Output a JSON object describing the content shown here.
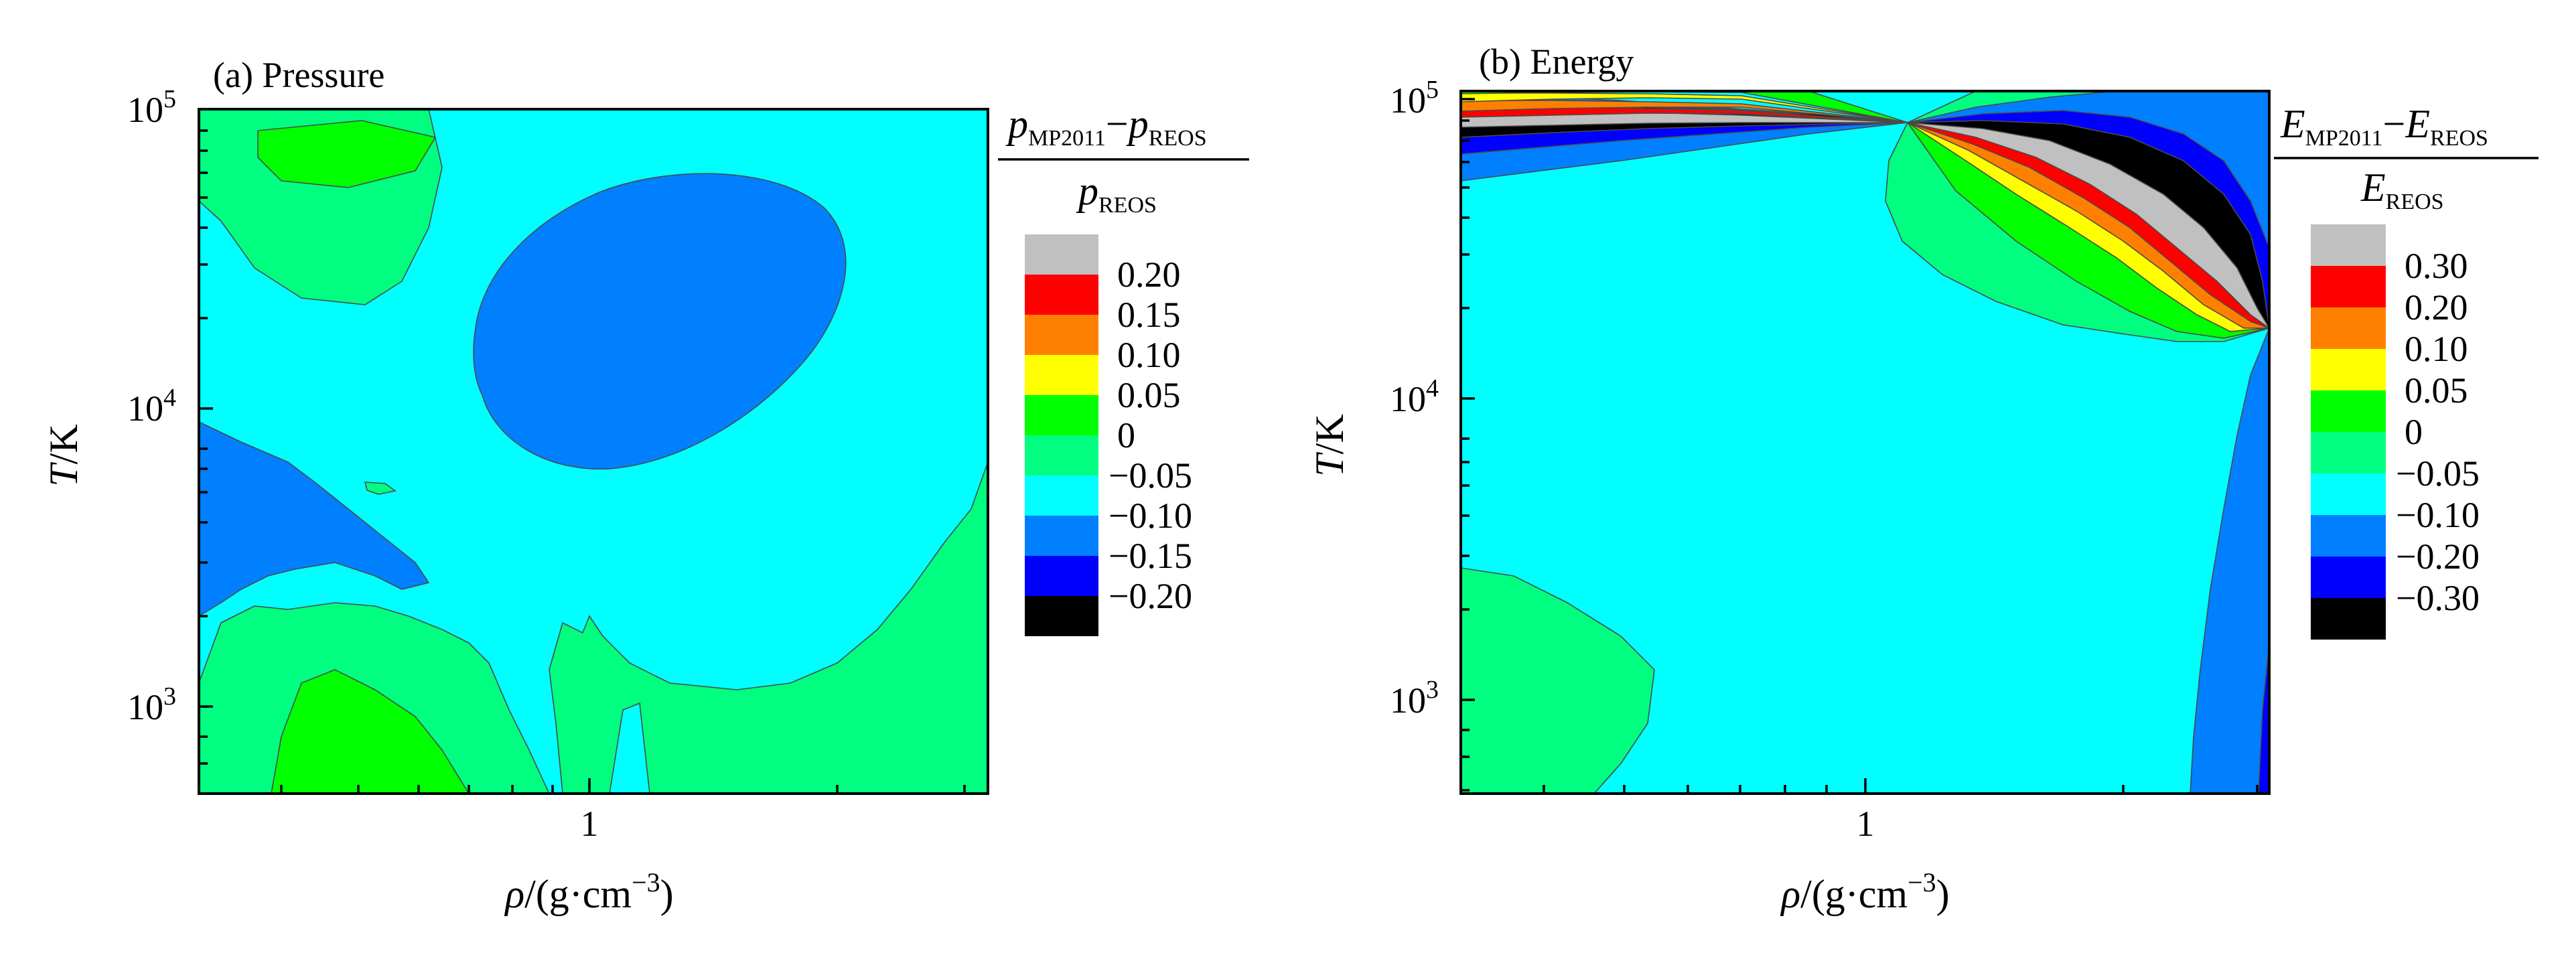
{
  "chart_data": [
    {
      "type": "heatmap",
      "panel_label": "(a) Pressure",
      "xlabel": "ρ/(g·cm⁻³)",
      "ylabel": "T/K",
      "x_scale": "log",
      "y_scale": "log",
      "x_ticks": [
        "1"
      ],
      "y_ticks": [
        "10^3",
        "10^4",
        "10^5"
      ],
      "colorbar_title": "(p_MP2011 − p_REOS) / p_REOS",
      "colorbar": {
        "levels": [
          "0.20",
          "0.15",
          "0.10",
          "0.05",
          "0",
          "−0.05",
          "−0.10",
          "−0.15",
          "−0.20"
        ],
        "colors": [
          "#c0c0c0",
          "#ff0000",
          "#ff8000",
          "#ffff00",
          "#00ff00",
          "#00ff80",
          "#00ffff",
          "#0080ff",
          "#0000ff",
          "#000000"
        ]
      }
    },
    {
      "type": "heatmap",
      "panel_label": "(b) Energy",
      "xlabel": "ρ/(g·cm⁻³)",
      "ylabel": "T/K",
      "x_scale": "log",
      "y_scale": "log",
      "x_ticks": [
        "1"
      ],
      "y_ticks": [
        "10^3",
        "10^4",
        "10^5"
      ],
      "colorbar_title": "(E_MP2011 − E_REOS) / E_REOS",
      "colorbar": {
        "levels": [
          "0.30",
          "0.20",
          "0.10",
          "0.05",
          "0",
          "−0.05",
          "−0.10",
          "−0.20",
          "−0.30"
        ],
        "colors": [
          "#c0c0c0",
          "#ff0000",
          "#ff8000",
          "#ffff00",
          "#00ff00",
          "#00ff80",
          "#00ffff",
          "#0080ff",
          "#0000ff",
          "#000000"
        ]
      }
    }
  ],
  "text": {
    "a_label": "(a) Pressure",
    "b_label": "(b) Energy",
    "ylabel_T": "T",
    "ylabel_unit": "/K",
    "xlabel_rho": "ρ",
    "xlabel_unit": "/(g",
    "xlabel_dot": "·",
    "xlabel_cm": "cm",
    "xlabel_exp": "−3",
    "xlabel_close": ")",
    "x_tick_1": "1",
    "y_tick_base": "10",
    "y_tick_3": "3",
    "y_tick_4": "4",
    "y_tick_5": "5",
    "a_num_p": "p",
    "a_num_sub1": "MP2011",
    "a_num_minus": "−",
    "a_num_sub2": "REOS",
    "a_den_p": "p",
    "a_den_sub": "REOS",
    "b_num_E": "E",
    "b_num_sub1": "MP2011",
    "b_num_minus": "−",
    "b_num_sub2": "REOS",
    "b_den_E": "E",
    "b_den_sub": "REOS",
    "a_cb_0": "0.20",
    "a_cb_1": "0.15",
    "a_cb_2": "0.10",
    "a_cb_3": "0.05",
    "a_cb_4": "0",
    "a_cb_5": "−0.05",
    "a_cb_6": "−0.10",
    "a_cb_7": "−0.15",
    "a_cb_8": "−0.20",
    "b_cb_0": "0.30",
    "b_cb_1": "0.20",
    "b_cb_2": "0.10",
    "b_cb_3": "0.05",
    "b_cb_4": "0",
    "b_cb_5": "−0.05",
    "b_cb_6": "−0.10",
    "b_cb_7": "−0.20",
    "b_cb_8": "−0.30"
  },
  "colors": {
    "grey": "#c0c0c0",
    "red": "#ff0000",
    "orange": "#ff8000",
    "yellow": "#ffff00",
    "green": "#00ff00",
    "springgreen": "#00ff80",
    "cyan": "#00ffff",
    "azure": "#0080ff",
    "blue": "#0000ff",
    "black": "#000000"
  }
}
